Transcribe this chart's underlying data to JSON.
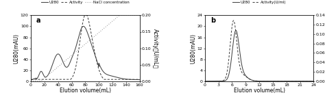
{
  "panel_a": {
    "title": "a",
    "xlabel": "Elution volume(mL)",
    "ylabel_left": "U280(mAU)",
    "ylabel_right": "Activity（U/mL）",
    "xlim": [
      0,
      160
    ],
    "ylim_left": [
      0,
      120
    ],
    "ylim_right": [
      0,
      0.2
    ],
    "xticks": [
      0,
      20,
      40,
      60,
      80,
      100,
      120,
      140,
      160
    ],
    "yticks_left": [
      0,
      20,
      40,
      60,
      80,
      100,
      120
    ],
    "yticks_right": [
      0.0,
      0.05,
      0.1,
      0.15,
      0.2
    ],
    "legend_labels": [
      "U280",
      "Activity",
      "NaCl concentration"
    ],
    "color_dark": "#444444",
    "color_light": "#999999"
  },
  "panel_b": {
    "title": "b",
    "xlabel": "Elution volume(mL)",
    "ylabel_left": "U280(mAU)",
    "ylabel_right": "Activity(U/mL)",
    "xlim": [
      0,
      24
    ],
    "ylim_left": [
      0,
      24
    ],
    "ylim_right": [
      0,
      0.147
    ],
    "xticks": [
      0,
      3,
      6,
      9,
      12,
      15,
      18,
      21,
      24
    ],
    "yticks_left": [
      0,
      4,
      8,
      12,
      16,
      20,
      24
    ],
    "yticks_right": [
      0.0,
      0.021,
      0.042,
      0.063,
      0.084,
      0.105,
      0.126,
      0.147
    ],
    "legend_labels": [
      "U280",
      "Activity(U/ml)"
    ],
    "color_dark": "#444444"
  }
}
